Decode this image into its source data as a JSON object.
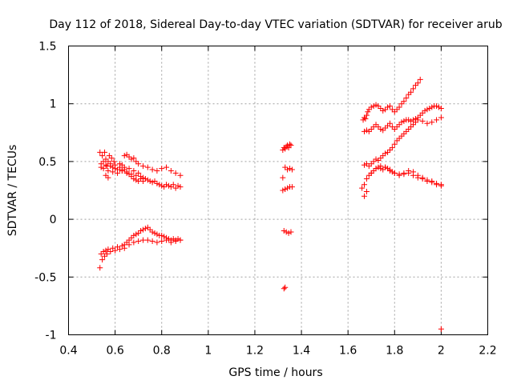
{
  "chart_data": {
    "type": "scatter",
    "title": "Day 112 of 2018, Sidereal Day-to-day VTEC variation (SDTVAR) for receiver arub",
    "xlabel": "GPS time / hours",
    "ylabel": "SDTVAR / TECUs",
    "xlim": [
      0.4,
      2.2
    ],
    "ylim": [
      -1,
      1.5
    ],
    "xticks": [
      "0.4",
      "0.6",
      "0.8",
      "1",
      "1.2",
      "1.4",
      "1.6",
      "1.8",
      "2",
      "2.2"
    ],
    "yticks": [
      "-1",
      "-0.5",
      "0",
      "0.5",
      "1",
      "1.5"
    ],
    "grid": true,
    "marker": "+",
    "color": "#ff0000",
    "series": [
      {
        "name": "upper-left cluster",
        "x": [
          0.535,
          0.54,
          0.545,
          0.55,
          0.555,
          0.56,
          0.565,
          0.57,
          0.575,
          0.58,
          0.585,
          0.59,
          0.595,
          0.6,
          0.61,
          0.62,
          0.63,
          0.64,
          0.65,
          0.66,
          0.67,
          0.68,
          0.69,
          0.7,
          0.71,
          0.72,
          0.73,
          0.74,
          0.75,
          0.76,
          0.77,
          0.78,
          0.79,
          0.8,
          0.81,
          0.82,
          0.83,
          0.84,
          0.85,
          0.86,
          0.87,
          0.88,
          0.54,
          0.55,
          0.56,
          0.57,
          0.58,
          0.59,
          0.6,
          0.61,
          0.62,
          0.63,
          0.64,
          0.65,
          0.66,
          0.67,
          0.68,
          0.69,
          0.7,
          0.72,
          0.74,
          0.76,
          0.78,
          0.8,
          0.82,
          0.84,
          0.86,
          0.88,
          0.56,
          0.57,
          0.62,
          0.63,
          0.64,
          0.65,
          0.66,
          0.67,
          0.68,
          0.69,
          0.7,
          0.71,
          0.72
        ],
        "y": [
          0.58,
          0.48,
          0.55,
          0.5,
          0.58,
          0.52,
          0.46,
          0.5,
          0.55,
          0.48,
          0.53,
          0.45,
          0.5,
          0.47,
          0.43,
          0.48,
          0.42,
          0.45,
          0.4,
          0.44,
          0.39,
          0.42,
          0.38,
          0.4,
          0.37,
          0.36,
          0.35,
          0.34,
          0.33,
          0.32,
          0.33,
          0.31,
          0.3,
          0.29,
          0.28,
          0.3,
          0.29,
          0.28,
          0.3,
          0.27,
          0.29,
          0.28,
          0.45,
          0.44,
          0.47,
          0.42,
          0.46,
          0.41,
          0.44,
          0.4,
          0.43,
          0.42,
          0.55,
          0.56,
          0.54,
          0.52,
          0.53,
          0.5,
          0.48,
          0.46,
          0.45,
          0.43,
          0.42,
          0.44,
          0.45,
          0.42,
          0.4,
          0.38,
          0.38,
          0.36,
          0.45,
          0.47,
          0.43,
          0.41,
          0.39,
          0.37,
          0.35,
          0.34,
          0.33,
          0.35,
          0.33
        ]
      },
      {
        "name": "lower-left cluster",
        "x": [
          0.535,
          0.54,
          0.545,
          0.55,
          0.555,
          0.56,
          0.565,
          0.57,
          0.58,
          0.59,
          0.6,
          0.61,
          0.62,
          0.63,
          0.64,
          0.65,
          0.66,
          0.67,
          0.68,
          0.69,
          0.7,
          0.71,
          0.72,
          0.73,
          0.74,
          0.75,
          0.76,
          0.77,
          0.78,
          0.79,
          0.8,
          0.81,
          0.82,
          0.83,
          0.84,
          0.85,
          0.86,
          0.87,
          0.88,
          0.64,
          0.66,
          0.68,
          0.7,
          0.72,
          0.74,
          0.76,
          0.78,
          0.8,
          0.82,
          0.84,
          0.86,
          0.88
        ],
        "y": [
          -0.42,
          -0.3,
          -0.35,
          -0.28,
          -0.32,
          -0.27,
          -0.3,
          -0.26,
          -0.28,
          -0.25,
          -0.27,
          -0.24,
          -0.26,
          -0.23,
          -0.22,
          -0.2,
          -0.18,
          -0.16,
          -0.14,
          -0.13,
          -0.12,
          -0.1,
          -0.09,
          -0.08,
          -0.07,
          -0.09,
          -0.11,
          -0.12,
          -0.13,
          -0.14,
          -0.14,
          -0.15,
          -0.16,
          -0.17,
          -0.18,
          -0.17,
          -0.18,
          -0.17,
          -0.18,
          -0.25,
          -0.22,
          -0.2,
          -0.19,
          -0.18,
          -0.18,
          -0.19,
          -0.2,
          -0.19,
          -0.18,
          -0.2,
          -0.19,
          -0.18
        ]
      },
      {
        "name": "middle cluster",
        "x": [
          1.32,
          1.325,
          1.33,
          1.335,
          1.34,
          1.345,
          1.35,
          1.355,
          1.32,
          1.33,
          1.34,
          1.35,
          1.36,
          1.32,
          1.33,
          1.34,
          1.35,
          1.36,
          1.325,
          1.335,
          1.345,
          1.355,
          1.325,
          1.33
        ],
        "y": [
          0.6,
          0.62,
          0.61,
          0.63,
          0.64,
          0.62,
          0.65,
          0.64,
          0.36,
          0.45,
          0.43,
          0.44,
          0.43,
          0.25,
          0.26,
          0.27,
          0.28,
          0.28,
          -0.1,
          -0.11,
          -0.12,
          -0.11,
          -0.6,
          -0.59
        ]
      },
      {
        "name": "right cluster",
        "x": [
          1.665,
          1.67,
          1.675,
          1.68,
          1.685,
          1.69,
          1.7,
          1.71,
          1.72,
          1.73,
          1.74,
          1.75,
          1.76,
          1.77,
          1.78,
          1.79,
          1.8,
          1.81,
          1.82,
          1.83,
          1.84,
          1.85,
          1.86,
          1.87,
          1.88,
          1.89,
          1.9,
          1.91,
          1.67,
          1.68,
          1.69,
          1.7,
          1.71,
          1.72,
          1.73,
          1.74,
          1.75,
          1.76,
          1.77,
          1.78,
          1.79,
          1.8,
          1.81,
          1.82,
          1.83,
          1.84,
          1.85,
          1.86,
          1.87,
          1.88,
          1.89,
          1.9,
          1.91,
          1.92,
          1.93,
          1.94,
          1.95,
          1.96,
          1.97,
          1.98,
          1.99,
          2.0,
          1.67,
          1.68,
          1.69,
          1.7,
          1.71,
          1.72,
          1.73,
          1.74,
          1.75,
          1.76,
          1.77,
          1.78,
          1.79,
          1.8,
          1.81,
          1.82,
          1.83,
          1.84,
          1.85,
          1.86,
          1.87,
          1.88,
          1.89,
          1.9,
          1.92,
          1.94,
          1.96,
          1.98,
          2.0,
          1.66,
          1.67,
          1.68,
          1.69,
          1.7,
          1.71,
          1.72,
          1.73,
          1.74,
          1.75,
          1.76,
          1.77,
          1.78,
          1.79,
          1.8,
          1.82,
          1.84,
          1.86,
          1.88,
          1.9,
          1.92,
          1.94,
          1.96,
          1.98,
          2.0,
          1.67,
          1.68,
          1.7,
          1.72,
          1.74,
          1.76,
          1.78,
          1.8,
          1.82,
          1.84,
          1.86,
          1.88,
          1.9,
          1.92,
          1.94,
          1.96,
          1.98,
          2.0,
          2.0
        ],
        "y": [
          0.86,
          0.88,
          0.87,
          0.9,
          0.93,
          0.95,
          0.97,
          0.98,
          0.99,
          0.98,
          0.96,
          0.94,
          0.95,
          0.97,
          0.98,
          0.95,
          0.93,
          0.95,
          0.97,
          1.0,
          1.02,
          1.05,
          1.08,
          1.1,
          1.13,
          1.16,
          1.18,
          1.21,
          0.76,
          0.77,
          0.76,
          0.78,
          0.8,
          0.82,
          0.8,
          0.78,
          0.77,
          0.79,
          0.81,
          0.83,
          0.8,
          0.78,
          0.8,
          0.82,
          0.84,
          0.85,
          0.86,
          0.86,
          0.85,
          0.86,
          0.87,
          0.88,
          0.9,
          0.92,
          0.94,
          0.95,
          0.96,
          0.97,
          0.98,
          0.98,
          0.97,
          0.96,
          0.47,
          0.48,
          0.46,
          0.48,
          0.5,
          0.52,
          0.51,
          0.53,
          0.55,
          0.57,
          0.58,
          0.6,
          0.62,
          0.65,
          0.68,
          0.7,
          0.72,
          0.74,
          0.76,
          0.78,
          0.8,
          0.82,
          0.84,
          0.86,
          0.85,
          0.83,
          0.84,
          0.86,
          0.88,
          0.27,
          0.3,
          0.35,
          0.38,
          0.4,
          0.42,
          0.44,
          0.45,
          0.44,
          0.43,
          0.45,
          0.44,
          0.42,
          0.41,
          0.4,
          0.39,
          0.4,
          0.42,
          0.41,
          0.38,
          0.36,
          0.34,
          0.33,
          0.31,
          0.3,
          0.2,
          0.24,
          0.4,
          0.44,
          0.46,
          0.45,
          0.43,
          0.4,
          0.38,
          0.39,
          0.4,
          0.38,
          0.36,
          0.35,
          0.33,
          0.32,
          0.3,
          0.29,
          -0.95
        ]
      }
    ]
  }
}
